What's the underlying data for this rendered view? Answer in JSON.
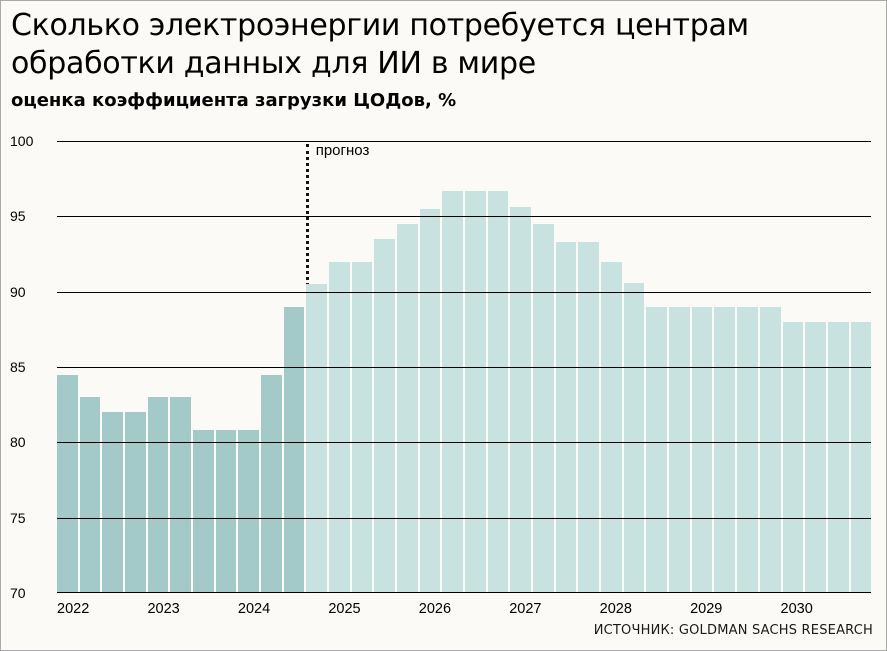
{
  "header": {
    "title_line1": "Сколько электроэнергии потребуется центрам",
    "title_line2": "обработки данных для ИИ в мире",
    "subtitle": "оценка коэффициента загрузки ЦОДов, %"
  },
  "source": "ИСТОЧНИК: GOLDMAN SACHS RESEARCH",
  "chart_data": {
    "type": "bar",
    "title": "Сколько электроэнергии потребуется центрам обработки данных для ИИ в мире",
    "subtitle": "оценка коэффициента загрузки ЦОДов, %",
    "xlabel": "",
    "ylabel": "коэффициент загрузки ЦОДов, %",
    "ylim": [
      70,
      100
    ],
    "yticks": [
      70,
      75,
      80,
      85,
      90,
      95,
      100
    ],
    "grid": true,
    "legend": "none",
    "frequency": "quarterly",
    "years": [
      "2022",
      "2023",
      "2024",
      "2025",
      "2026",
      "2027",
      "2028",
      "2029",
      "2030"
    ],
    "categories": [
      "2022 Q1",
      "2022 Q2",
      "2022 Q3",
      "2022 Q4",
      "2023 Q1",
      "2023 Q2",
      "2023 Q3",
      "2023 Q4",
      "2024 Q1",
      "2024 Q2",
      "2024 Q3",
      "2024 Q4",
      "2025 Q1",
      "2025 Q2",
      "2025 Q3",
      "2025 Q4",
      "2026 Q1",
      "2026 Q2",
      "2026 Q3",
      "2026 Q4",
      "2027 Q1",
      "2027 Q2",
      "2027 Q3",
      "2027 Q4",
      "2028 Q1",
      "2028 Q2",
      "2028 Q3",
      "2028 Q4",
      "2029 Q1",
      "2029 Q2",
      "2029 Q3",
      "2029 Q4",
      "2030 Q1",
      "2030 Q2",
      "2030 Q3",
      "2030 Q4"
    ],
    "values": [
      84.5,
      83,
      82,
      82,
      83,
      83,
      80.8,
      80.8,
      80.8,
      84.5,
      89,
      90.5,
      92,
      92,
      93.5,
      94.5,
      95.5,
      96.7,
      96.7,
      96.7,
      95.6,
      94.5,
      93.3,
      93.3,
      92,
      90.6,
      89,
      89,
      89,
      89,
      89,
      89,
      88,
      88,
      88,
      88
    ],
    "forecast_label": "прогноз",
    "forecast_start_index": 11,
    "colors": {
      "actual": "#a3c9c8",
      "forecast": "#c8e2e0",
      "gridline": "#000000",
      "forecast_divider": "#141414"
    }
  }
}
